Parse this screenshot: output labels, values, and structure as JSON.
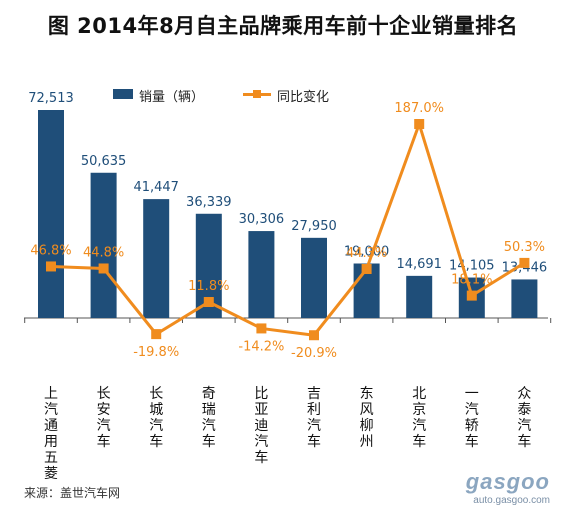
{
  "title": "图   2014年8月自主品牌乘用车前十企业销量排名",
  "legend": {
    "sales_label": "销量（辆）",
    "growth_label": "同比变化"
  },
  "source": "来源：盖世汽车网",
  "watermark": {
    "brand": "gasgoo",
    "url": "auto.gasgoo.com"
  },
  "colors": {
    "bar": "#1f4e79",
    "line": "#f08c1e",
    "bar_label": "#1f4e79",
    "line_label": "#f08c1e"
  },
  "chart_data": {
    "type": "bar",
    "title": "图   2014年8月自主品牌乘用车前十企业销量排名",
    "categories": [
      "上汽通用五菱",
      "长安汽车",
      "长城汽车",
      "奇瑞汽车",
      "比亚迪汽车",
      "吉利汽车",
      "东风柳州",
      "北京汽车",
      "一汽轿车",
      "众泰汽车"
    ],
    "series": [
      {
        "name": "销量（辆）",
        "type": "bar",
        "values": [
          72513,
          50635,
          41447,
          36339,
          30306,
          27950,
          19000,
          14691,
          14105,
          13446
        ],
        "labels": [
          "72,513",
          "50,635",
          "41,447",
          "36,339",
          "30,306",
          "27,950",
          "19,000",
          "14,691",
          "14,105",
          "13,446"
        ]
      },
      {
        "name": "同比变化",
        "type": "line",
        "values": [
          46.8,
          44.8,
          -19.8,
          11.8,
          -14.2,
          -20.9,
          44.3,
          187.0,
          18.1,
          50.3
        ],
        "labels": [
          "46.8%",
          "44.8%",
          "-19.8%",
          "11.8%",
          "-14.2%",
          "-20.9%",
          "44.3%",
          "187.0%",
          "18.1%",
          "50.3%"
        ]
      }
    ],
    "legend_position": "top-left",
    "grid": false
  }
}
